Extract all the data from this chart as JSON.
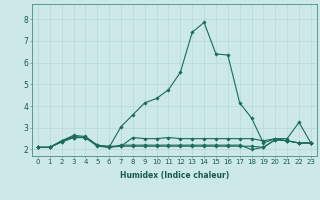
{
  "xlabel": "Humidex (Indice chaleur)",
  "background_color": "#cce8e8",
  "grid_color": "#b8d8d8",
  "line_color": "#1a6b5a",
  "xlim": [
    -0.5,
    23.5
  ],
  "ylim": [
    1.7,
    8.7
  ],
  "yticks": [
    2,
    3,
    4,
    5,
    6,
    7,
    8
  ],
  "xticks": [
    0,
    1,
    2,
    3,
    4,
    5,
    6,
    7,
    8,
    9,
    10,
    11,
    12,
    13,
    14,
    15,
    16,
    17,
    18,
    19,
    20,
    21,
    22,
    23
  ],
  "series": [
    [
      2.1,
      2.1,
      2.4,
      2.6,
      2.55,
      2.15,
      2.1,
      3.05,
      3.6,
      4.15,
      4.35,
      4.75,
      5.55,
      7.4,
      7.85,
      6.4,
      6.35,
      4.15,
      3.45,
      2.3,
      2.5,
      2.5,
      3.25,
      2.3
    ],
    [
      2.1,
      2.1,
      2.4,
      2.65,
      2.6,
      2.2,
      2.15,
      2.15,
      2.55,
      2.5,
      2.5,
      2.55,
      2.5,
      2.5,
      2.5,
      2.5,
      2.5,
      2.5,
      2.5,
      2.4,
      2.5,
      2.4,
      2.3,
      2.3
    ],
    [
      2.1,
      2.1,
      2.35,
      2.55,
      2.55,
      2.2,
      2.1,
      2.2,
      2.2,
      2.2,
      2.2,
      2.2,
      2.2,
      2.2,
      2.2,
      2.2,
      2.2,
      2.2,
      2.0,
      2.1,
      2.45,
      2.4,
      2.3,
      2.3
    ],
    [
      2.1,
      2.1,
      2.35,
      2.55,
      2.55,
      2.2,
      2.1,
      2.15,
      2.15,
      2.15,
      2.15,
      2.15,
      2.15,
      2.15,
      2.15,
      2.15,
      2.15,
      2.15,
      2.15,
      2.1,
      2.45,
      2.4,
      2.3,
      2.3
    ]
  ],
  "xlabel_fontsize": 5.5,
  "xlabel_color": "#1a5a4a",
  "tick_fontsize": 5.0,
  "figsize": [
    3.2,
    2.0
  ],
  "dpi": 100
}
